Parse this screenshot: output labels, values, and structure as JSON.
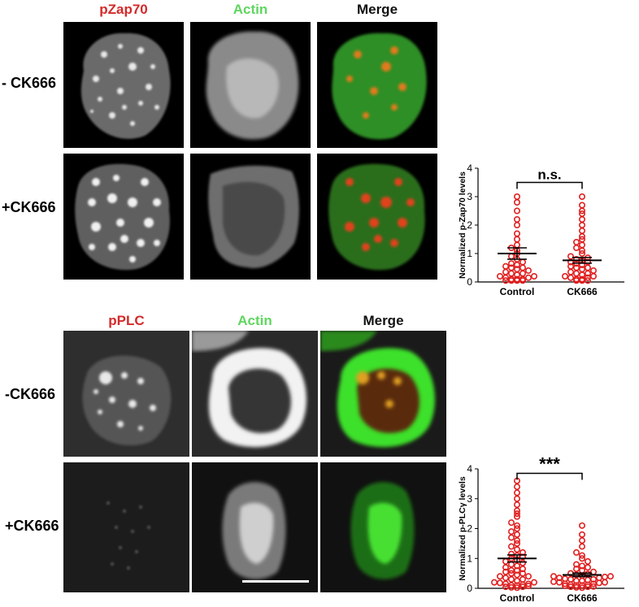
{
  "figure": {
    "top": {
      "headers": [
        "pZap70",
        "Actin",
        "Merge"
      ],
      "rows": [
        "- CK666",
        "+CK666"
      ]
    },
    "bottom": {
      "headers": [
        "pPLC",
        "Actin",
        "Merge"
      ],
      "rows": [
        "-CK666",
        "+CK666"
      ]
    },
    "colors": {
      "red_label": "#d42a2a",
      "green_label": "#5fd65f",
      "dot": "#e02020"
    }
  },
  "chart_data": [
    {
      "type": "scatter",
      "ylabel": "Normalized p-Zap70 levels",
      "categories": [
        "Control",
        "CK666"
      ],
      "ylim": [
        0,
        4
      ],
      "yticks": [
        "0",
        "1",
        "2",
        "3",
        "4"
      ],
      "significance": "n.s.",
      "means": [
        1.0,
        0.76
      ],
      "sem": [
        0.2,
        0.1
      ],
      "series": [
        {
          "values": [
            0.05,
            0.05,
            0.05,
            0.05,
            0.1,
            0.1,
            0.1,
            0.15,
            0.15,
            0.2,
            0.2,
            0.25,
            0.3,
            0.3,
            0.35,
            0.4,
            0.45,
            0.5,
            0.5,
            0.55,
            0.6,
            0.65,
            0.7,
            0.8,
            0.9,
            1.0,
            1.1,
            1.2,
            1.3,
            1.5,
            1.7,
            2.0,
            2.2,
            2.5,
            2.8,
            3.0
          ]
        },
        {
          "values": [
            0.05,
            0.05,
            0.05,
            0.1,
            0.1,
            0.15,
            0.15,
            0.2,
            0.2,
            0.25,
            0.3,
            0.3,
            0.35,
            0.4,
            0.45,
            0.5,
            0.5,
            0.55,
            0.6,
            0.65,
            0.7,
            0.7,
            0.75,
            0.8,
            0.85,
            0.9,
            1.0,
            1.1,
            1.2,
            1.3,
            1.4,
            1.5,
            1.6,
            1.8,
            2.0,
            2.2,
            2.4,
            2.5,
            2.7,
            3.0
          ]
        }
      ]
    },
    {
      "type": "scatter",
      "ylabel": "Normalized p-PLCγ levels",
      "categories": [
        "Control",
        "CK666"
      ],
      "ylim": [
        0,
        4
      ],
      "yticks": [
        "0",
        "1",
        "2",
        "3",
        "4"
      ],
      "significance": "***",
      "means": [
        1.0,
        0.45
      ],
      "sem": [
        0.12,
        0.06
      ],
      "series": [
        {
          "values": [
            0.02,
            0.03,
            0.05,
            0.05,
            0.08,
            0.1,
            0.1,
            0.12,
            0.15,
            0.15,
            0.18,
            0.2,
            0.2,
            0.25,
            0.3,
            0.3,
            0.35,
            0.4,
            0.4,
            0.45,
            0.5,
            0.5,
            0.55,
            0.6,
            0.6,
            0.65,
            0.7,
            0.75,
            0.8,
            0.85,
            0.9,
            0.95,
            1.0,
            1.05,
            1.1,
            1.15,
            1.2,
            1.3,
            1.4,
            1.5,
            1.6,
            1.7,
            1.8,
            1.9,
            2.0,
            2.1,
            2.2,
            2.4,
            2.5,
            2.6,
            2.8,
            3.0,
            3.2,
            3.4,
            3.6
          ]
        },
        {
          "values": [
            0.02,
            0.03,
            0.05,
            0.05,
            0.06,
            0.08,
            0.1,
            0.1,
            0.12,
            0.12,
            0.15,
            0.15,
            0.18,
            0.2,
            0.2,
            0.22,
            0.25,
            0.25,
            0.28,
            0.3,
            0.3,
            0.32,
            0.35,
            0.35,
            0.38,
            0.4,
            0.4,
            0.42,
            0.45,
            0.48,
            0.5,
            0.55,
            0.6,
            0.65,
            0.7,
            0.75,
            0.8,
            0.9,
            1.0,
            1.1,
            1.2,
            1.4,
            1.6,
            1.8,
            2.1
          ]
        }
      ]
    }
  ]
}
